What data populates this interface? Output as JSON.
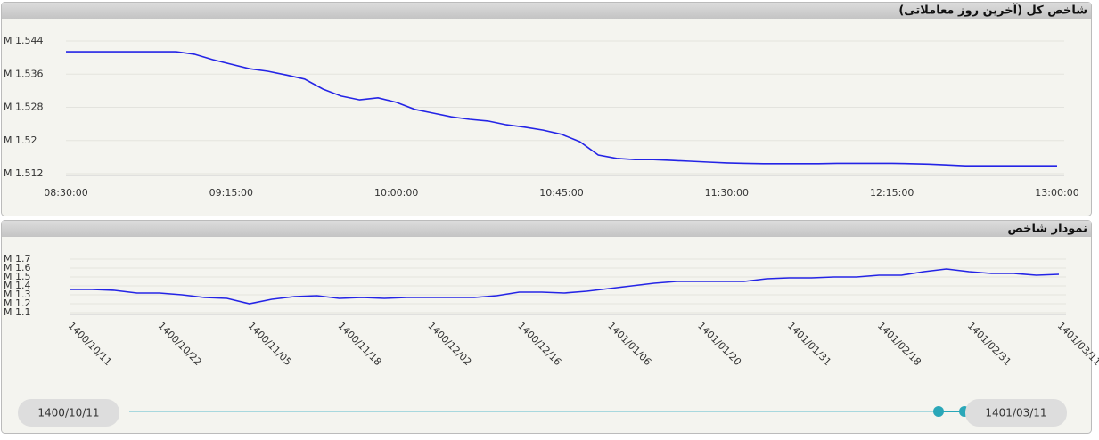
{
  "chart_data": [
    {
      "type": "line",
      "title": "شاخص کل (آخرین روز معاملاتی)",
      "color": "#2424e6",
      "grid": true,
      "x": [
        "08:30:00",
        "08:35:00",
        "08:40:00",
        "08:45:00",
        "08:50:00",
        "08:55:00",
        "09:00:00",
        "09:05:00",
        "09:10:00",
        "09:15:00",
        "09:20:00",
        "09:25:00",
        "09:30:00",
        "09:35:00",
        "09:40:00",
        "09:45:00",
        "09:50:00",
        "09:55:00",
        "10:00:00",
        "10:05:00",
        "10:10:00",
        "10:15:00",
        "10:20:00",
        "10:25:00",
        "10:30:00",
        "10:35:00",
        "10:40:00",
        "10:45:00",
        "10:50:00",
        "10:55:00",
        "11:00:00",
        "11:05:00",
        "11:10:00",
        "11:15:00",
        "11:20:00",
        "11:25:00",
        "11:30:00",
        "11:35:00",
        "11:40:00",
        "11:45:00",
        "11:50:00",
        "11:55:00",
        "12:00:00",
        "12:05:00",
        "12:10:00",
        "12:15:00",
        "12:20:00",
        "12:25:00",
        "12:30:00",
        "12:35:00",
        "12:40:00",
        "12:45:00",
        "12:50:00",
        "12:55:00",
        "13:00:00"
      ],
      "values": [
        1.5414,
        1.5414,
        1.5414,
        1.5414,
        1.5414,
        1.5414,
        1.5414,
        1.5408,
        1.5395,
        1.5384,
        1.5373,
        1.5367,
        1.5358,
        1.5348,
        1.5324,
        1.5307,
        1.5298,
        1.5303,
        1.5292,
        1.5275,
        1.5266,
        1.5257,
        1.5251,
        1.5247,
        1.5238,
        1.5232,
        1.5225,
        1.5215,
        1.5197,
        1.5165,
        1.5157,
        1.5154,
        1.5154,
        1.5152,
        1.515,
        1.5148,
        1.5146,
        1.5145,
        1.5144,
        1.5144,
        1.5144,
        1.5144,
        1.5145,
        1.5145,
        1.5145,
        1.5145,
        1.5144,
        1.5143,
        1.5141,
        1.5139,
        1.5139,
        1.5139,
        1.5139,
        1.5139,
        1.5139
      ],
      "xlim": [
        "08:30:00",
        "13:00:00"
      ],
      "xticks": [
        "08:30:00",
        "09:15:00",
        "10:00:00",
        "10:45:00",
        "11:30:00",
        "12:15:00",
        "13:00:00"
      ],
      "ylim": [
        1.512,
        1.544
      ],
      "yticks": [
        {
          "value": 1.512,
          "label": "M 1.512"
        },
        {
          "value": 1.52,
          "label": "M 1.52"
        },
        {
          "value": 1.528,
          "label": "M 1.528"
        },
        {
          "value": 1.536,
          "label": "M 1.536"
        },
        {
          "value": 1.544,
          "label": "M 1.544"
        }
      ]
    },
    {
      "type": "line",
      "title": "نمودار شاخص",
      "color": "#2424e6",
      "grid": true,
      "categories": [
        "1400/10/11",
        null,
        null,
        null,
        "1400/10/22",
        null,
        null,
        null,
        "1400/11/05",
        null,
        null,
        null,
        "1400/11/18",
        null,
        null,
        null,
        "1400/12/02",
        null,
        null,
        null,
        "1400/12/16",
        null,
        null,
        null,
        "1401/01/06",
        null,
        null,
        null,
        "1401/01/20",
        null,
        null,
        null,
        "1401/01/31",
        null,
        null,
        null,
        "1401/02/18",
        null,
        null,
        null,
        "1401/02/31",
        null,
        null,
        null,
        "1401/03/11"
      ],
      "values": [
        1.36,
        1.36,
        1.35,
        1.32,
        1.32,
        1.3,
        1.27,
        1.26,
        1.2,
        1.25,
        1.28,
        1.29,
        1.26,
        1.27,
        1.26,
        1.27,
        1.27,
        1.27,
        1.27,
        1.29,
        1.33,
        1.33,
        1.32,
        1.34,
        1.37,
        1.4,
        1.43,
        1.45,
        1.45,
        1.45,
        1.45,
        1.48,
        1.49,
        1.49,
        1.5,
        1.5,
        1.52,
        1.52,
        1.56,
        1.59,
        1.56,
        1.54,
        1.54,
        1.52,
        1.53
      ],
      "ylim": [
        1.1,
        1.7
      ],
      "yticks": [
        {
          "value": 1.1,
          "label": "M 1.1"
        },
        {
          "value": 1.2,
          "label": "M 1.2"
        },
        {
          "value": 1.3,
          "label": "M 1.3"
        },
        {
          "value": 1.4,
          "label": "M 1.4"
        },
        {
          "value": 1.5,
          "label": "M 1.5"
        },
        {
          "value": 1.6,
          "label": "M 1.6"
        },
        {
          "value": 1.7,
          "label": "M 1.7"
        }
      ]
    }
  ],
  "slider": {
    "start_label": "1400/10/11",
    "end_label": "1401/03/11"
  }
}
